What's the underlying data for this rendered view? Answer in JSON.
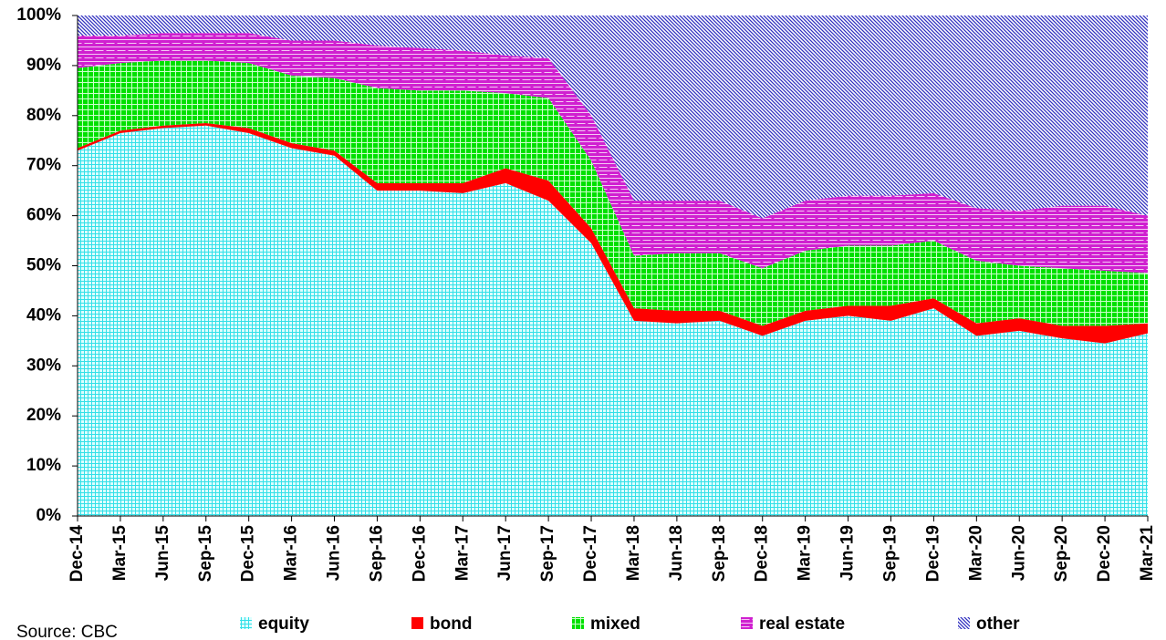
{
  "chart_data": {
    "type": "stacked_area",
    "categories": [
      "Dec-14",
      "Mar-15",
      "Jun-15",
      "Sep-15",
      "Dec-15",
      "Mar-16",
      "Jun-16",
      "Sep-16",
      "Dec-16",
      "Mar-17",
      "Jun-17",
      "Sep-17",
      "Dec-17",
      "Mar-18",
      "Jun-18",
      "Sep-18",
      "Dec-18",
      "Mar-19",
      "Jun-19",
      "Sep-19",
      "Dec-19",
      "Mar-20",
      "Jun-20",
      "Sep-20",
      "Dec-20",
      "Mar-21"
    ],
    "series": [
      {
        "name": "equity",
        "color": "#33e0e8",
        "values": [
          73,
          76.5,
          77.5,
          78,
          76.5,
          73.5,
          72,
          65,
          65,
          64.5,
          66.5,
          63,
          54.5,
          39,
          38.5,
          39,
          36,
          39,
          40,
          39,
          41.5,
          36,
          37,
          35.5,
          34.5,
          36.5
        ]
      },
      {
        "name": "bond",
        "color": "#ff0000",
        "values": [
          0.5,
          0.5,
          0.5,
          0.5,
          1,
          1,
          1,
          1.5,
          1.5,
          2,
          3,
          4,
          3,
          2.5,
          2.5,
          2,
          2,
          2,
          2,
          3,
          2,
          2.5,
          2.5,
          2.5,
          3.5,
          2
        ]
      },
      {
        "name": "mixed",
        "color": "#00e000",
        "values": [
          16,
          13.5,
          13,
          12.5,
          13,
          13.5,
          14.5,
          19,
          18.5,
          18.5,
          15,
          16.5,
          13.5,
          10.5,
          11.5,
          11.5,
          11.5,
          12,
          12,
          12,
          11.5,
          12.5,
          10.5,
          11.5,
          11,
          10
        ]
      },
      {
        "name": "real estate",
        "color": "#d020d0",
        "values": [
          6.5,
          5.5,
          5.5,
          5.5,
          6,
          7,
          7.5,
          8.5,
          8.5,
          8,
          7.5,
          8,
          9,
          11,
          10.5,
          10.5,
          10,
          10,
          10,
          10,
          9.5,
          10.5,
          11,
          12.5,
          13,
          11.5
        ]
      },
      {
        "name": "other",
        "color": "#3030c0",
        "values": [
          4,
          4,
          3.5,
          3.5,
          3.5,
          5,
          5,
          6,
          6.5,
          7,
          8,
          8.5,
          20,
          37,
          37,
          37,
          40.5,
          37,
          36,
          36,
          35.5,
          38.5,
          39,
          38,
          38,
          40
        ]
      }
    ],
    "ylim": [
      0,
      100
    ],
    "yticks": [
      {
        "value": 0,
        "label": "0%"
      },
      {
        "value": 10,
        "label": "10%"
      },
      {
        "value": 20,
        "label": "20%"
      },
      {
        "value": 30,
        "label": "30%"
      },
      {
        "value": 40,
        "label": "40%"
      },
      {
        "value": 50,
        "label": "50%"
      },
      {
        "value": 60,
        "label": "60%"
      },
      {
        "value": 70,
        "label": "70%"
      },
      {
        "value": 80,
        "label": "80%"
      },
      {
        "value": 90,
        "label": "90%"
      },
      {
        "value": 100,
        "label": "100%"
      }
    ],
    "source": "Source: CBC"
  }
}
